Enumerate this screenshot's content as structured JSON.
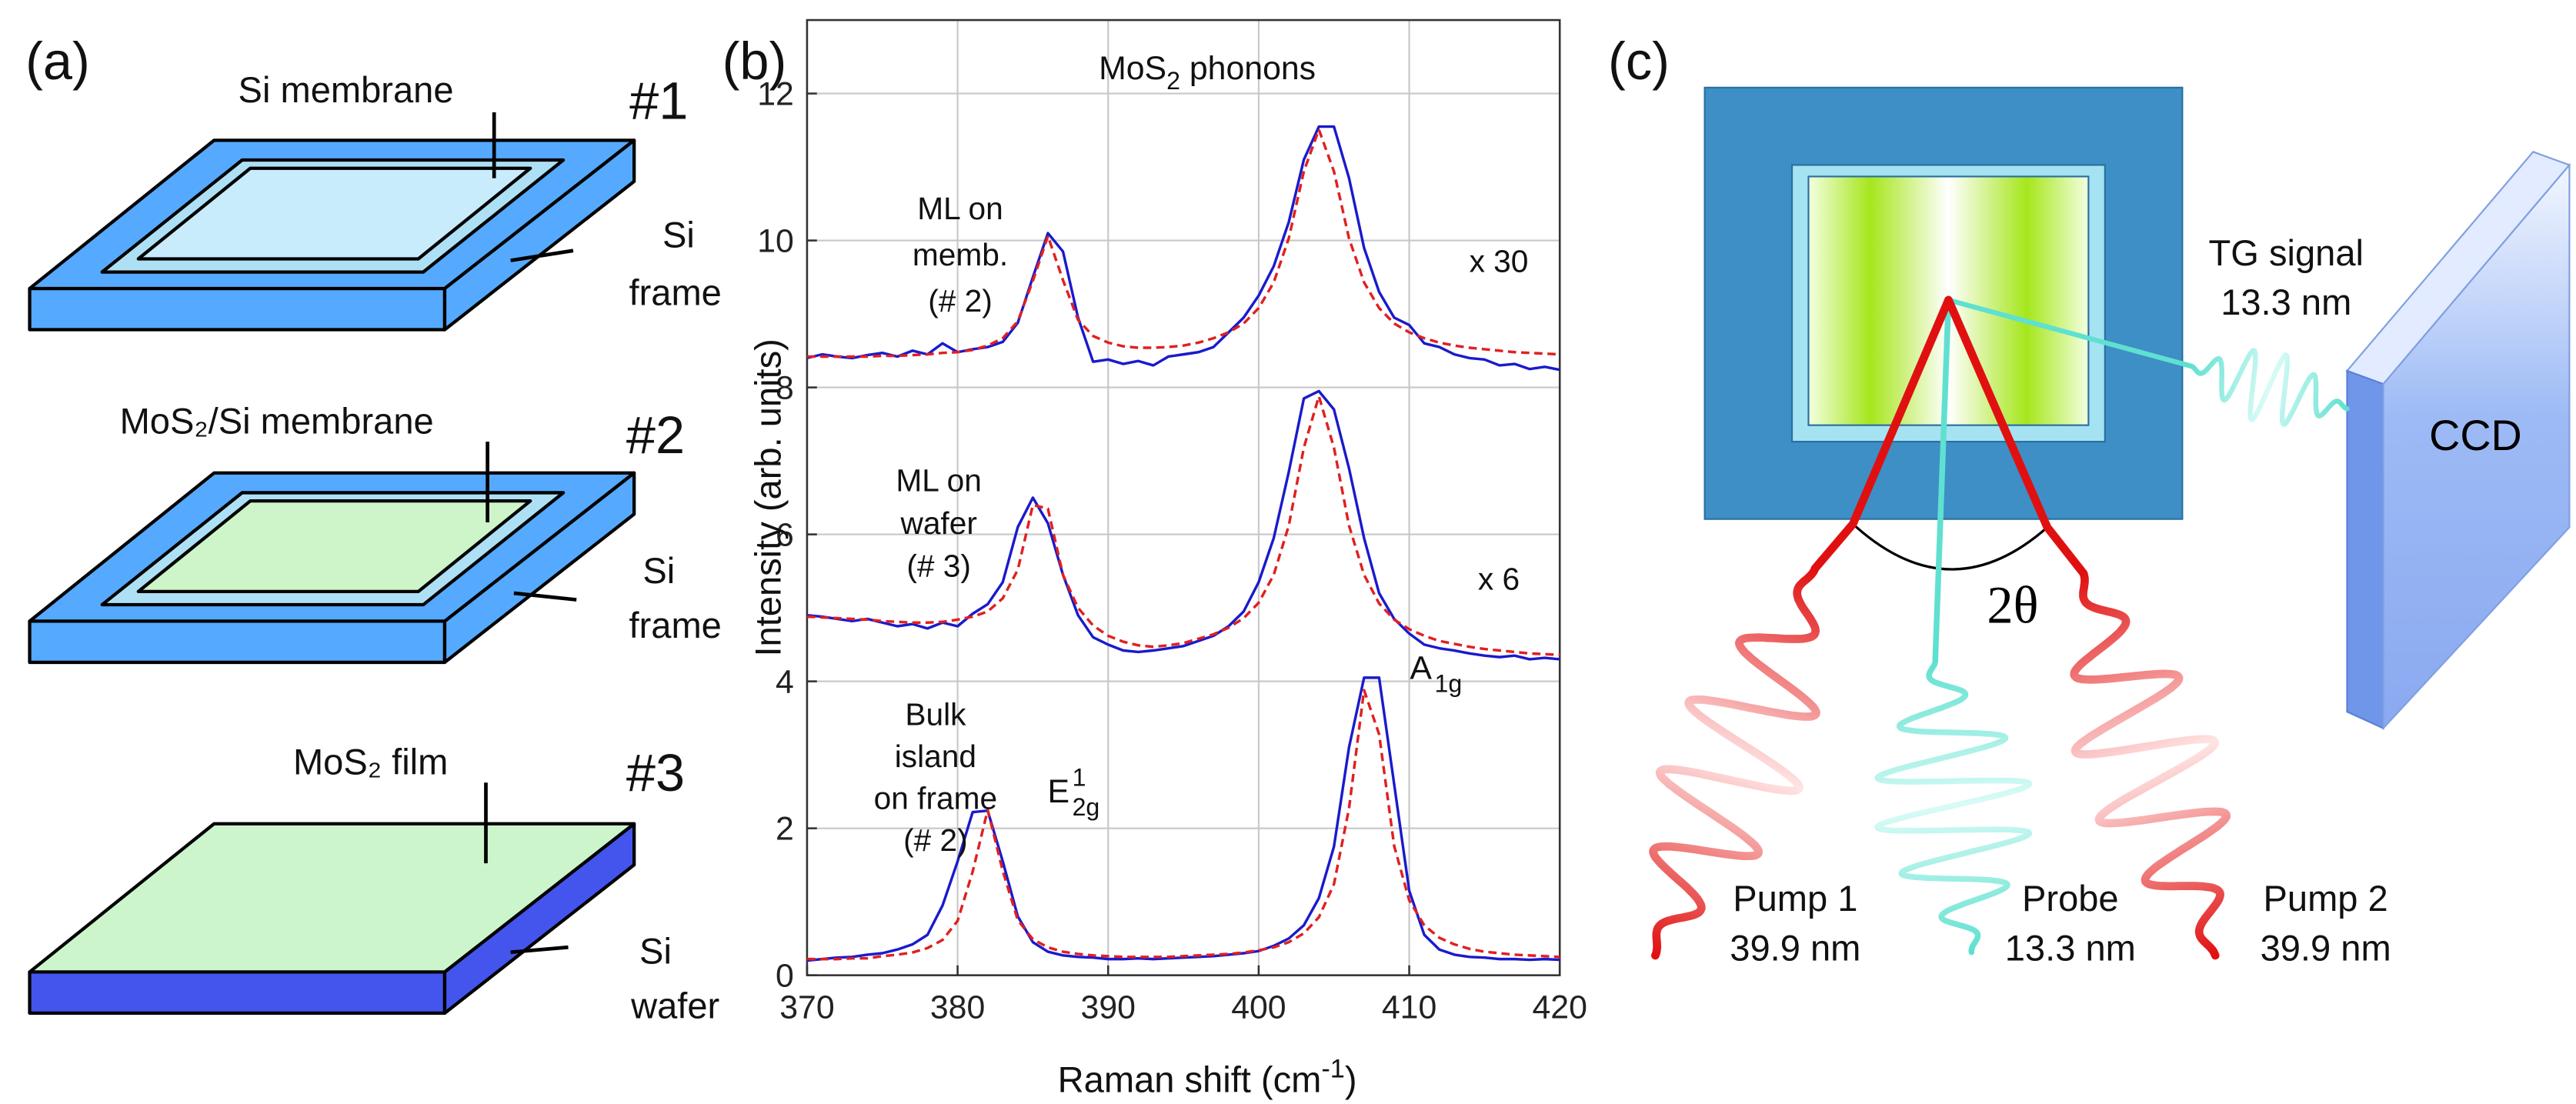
{
  "panel_a": {
    "label": "(a)",
    "samples": [
      {
        "number": "#1",
        "top_label": "Si membrane",
        "side_label": [
          "Si",
          "frame"
        ]
      },
      {
        "number": "#2",
        "top_label": "MoS₂/Si membrane",
        "side_label": [
          "Si",
          "frame"
        ]
      },
      {
        "number": "#3",
        "top_label": "MoS₂ film",
        "side_label": [
          "Si",
          "wafer"
        ]
      }
    ]
  },
  "chart_data": {
    "type": "line",
    "panel_label": "(b)",
    "title": {
      "text": "MoS",
      "sub": "2",
      "tail": " phonons"
    },
    "xlabel": {
      "text": "Raman shift (cm",
      "sup": "-1",
      "tail": ")"
    },
    "ylabel": "Intensity (arb. units)",
    "xlim": [
      370,
      420
    ],
    "ylim": [
      0,
      13
    ],
    "xticks": [
      370,
      380,
      390,
      400,
      410,
      420
    ],
    "yticks": [
      0,
      2,
      4,
      6,
      8,
      10,
      12
    ],
    "grid": true,
    "annotations": [
      {
        "lines": [
          "ML on",
          "memb.",
          "(# 2)"
        ]
      },
      {
        "lines": [
          "x 30"
        ]
      },
      {
        "lines": [
          "ML on",
          "wafer",
          "(# 3)"
        ]
      },
      {
        "lines": [
          "x 6"
        ]
      },
      {
        "lines": [
          "Bulk",
          "island",
          "on frame",
          "(# 2)"
        ]
      }
    ],
    "peak_labels": [
      {
        "text": "E",
        "sup": "1",
        "sub": "2g"
      },
      {
        "text": "A",
        "sub": "1g"
      }
    ],
    "x": [
      370,
      371,
      372,
      373,
      374,
      375,
      376,
      377,
      378,
      379,
      380,
      381,
      382,
      383,
      384,
      385,
      386,
      387,
      388,
      389,
      390,
      391,
      392,
      393,
      394,
      395,
      396,
      397,
      398,
      399,
      400,
      401,
      402,
      403,
      404,
      405,
      406,
      407,
      408,
      409,
      410,
      411,
      412,
      413,
      414,
      415,
      416,
      417,
      418,
      419,
      420
    ],
    "series": [
      {
        "color": "#1a1acc",
        "style": "solid",
        "values": [
          8.4,
          8.45,
          8.42,
          8.4,
          8.44,
          8.47,
          8.42,
          8.5,
          8.45,
          8.6,
          8.48,
          8.52,
          8.55,
          8.62,
          8.88,
          9.5,
          10.1,
          9.85,
          8.95,
          8.35,
          8.38,
          8.32,
          8.36,
          8.3,
          8.42,
          8.45,
          8.48,
          8.55,
          8.75,
          8.95,
          9.25,
          9.65,
          10.25,
          11.1,
          11.55,
          11.55,
          10.85,
          9.9,
          9.3,
          8.95,
          8.85,
          8.6,
          8.55,
          8.45,
          8.4,
          8.38,
          8.3,
          8.32,
          8.25,
          8.28,
          8.24
        ]
      },
      {
        "color": "#e02020",
        "style": "dashed",
        "values": [
          8.42,
          8.42,
          8.42,
          8.42,
          8.42,
          8.43,
          8.43,
          8.44,
          8.45,
          8.47,
          8.48,
          8.51,
          8.57,
          8.67,
          8.9,
          9.45,
          10.06,
          9.46,
          8.92,
          8.7,
          8.61,
          8.56,
          8.54,
          8.54,
          8.55,
          8.57,
          8.61,
          8.67,
          8.75,
          8.87,
          9.08,
          9.43,
          10.03,
          10.94,
          11.51,
          10.94,
          10.03,
          9.43,
          9.08,
          8.87,
          8.75,
          8.67,
          8.61,
          8.57,
          8.54,
          8.52,
          8.5,
          8.48,
          8.47,
          8.46,
          8.45
        ]
      },
      {
        "color": "#1a1acc",
        "style": "solid",
        "values": [
          4.9,
          4.88,
          4.85,
          4.82,
          4.85,
          4.8,
          4.75,
          4.78,
          4.72,
          4.8,
          4.75,
          4.92,
          5.05,
          5.35,
          6.1,
          6.5,
          6.15,
          5.45,
          4.9,
          4.6,
          4.5,
          4.42,
          4.4,
          4.42,
          4.45,
          4.48,
          4.55,
          4.62,
          4.75,
          4.95,
          5.35,
          5.95,
          6.85,
          7.85,
          7.95,
          7.7,
          6.9,
          5.95,
          5.2,
          4.85,
          4.65,
          4.5,
          4.45,
          4.42,
          4.38,
          4.35,
          4.33,
          4.35,
          4.3,
          4.32,
          4.3
        ]
      },
      {
        "color": "#e02020",
        "style": "dashed",
        "values": [
          4.88,
          4.87,
          4.86,
          4.85,
          4.84,
          4.82,
          4.81,
          4.8,
          4.8,
          4.81,
          4.84,
          4.88,
          4.95,
          5.13,
          5.52,
          6.4,
          6.35,
          5.45,
          5.0,
          4.76,
          4.62,
          4.54,
          4.49,
          4.47,
          4.49,
          4.52,
          4.58,
          4.64,
          4.73,
          4.86,
          5.07,
          5.45,
          6.12,
          7.18,
          7.88,
          7.18,
          6.12,
          5.45,
          5.06,
          4.84,
          4.71,
          4.62,
          4.55,
          4.51,
          4.47,
          4.44,
          4.42,
          4.4,
          4.38,
          4.37,
          4.36
        ]
      },
      {
        "color": "#1a1acc",
        "style": "solid",
        "values": [
          0.2,
          0.22,
          0.24,
          0.25,
          0.28,
          0.3,
          0.35,
          0.42,
          0.55,
          0.95,
          1.55,
          2.22,
          2.24,
          1.55,
          0.8,
          0.45,
          0.32,
          0.27,
          0.25,
          0.24,
          0.22,
          0.22,
          0.23,
          0.22,
          0.23,
          0.24,
          0.25,
          0.26,
          0.28,
          0.3,
          0.33,
          0.4,
          0.5,
          0.68,
          1.05,
          1.75,
          3.1,
          4.05,
          4.05,
          2.6,
          1.15,
          0.55,
          0.35,
          0.28,
          0.25,
          0.24,
          0.22,
          0.22,
          0.21,
          0.22,
          0.21
        ]
      },
      {
        "color": "#e02020",
        "style": "dashed",
        "values": [
          0.22,
          0.22,
          0.22,
          0.23,
          0.23,
          0.26,
          0.28,
          0.31,
          0.37,
          0.48,
          0.74,
          1.41,
          2.25,
          1.42,
          0.75,
          0.49,
          0.38,
          0.32,
          0.29,
          0.27,
          0.26,
          0.25,
          0.25,
          0.25,
          0.25,
          0.26,
          0.27,
          0.28,
          0.29,
          0.31,
          0.34,
          0.38,
          0.45,
          0.57,
          0.79,
          1.24,
          2.27,
          3.88,
          3.28,
          1.76,
          1.02,
          0.68,
          0.51,
          0.42,
          0.36,
          0.32,
          0.3,
          0.28,
          0.27,
          0.26,
          0.25
        ]
      }
    ]
  },
  "panel_c": {
    "label": "(c)",
    "signal": [
      "TG signal",
      "13.3 nm"
    ],
    "detector": "CCD",
    "angle": "2θ",
    "beams": [
      {
        "name": "Pump 1",
        "wavelength": "39.9 nm"
      },
      {
        "name": "Probe",
        "wavelength": "13.3 nm"
      },
      {
        "name": "Pump 2",
        "wavelength": "39.9 nm"
      }
    ]
  }
}
